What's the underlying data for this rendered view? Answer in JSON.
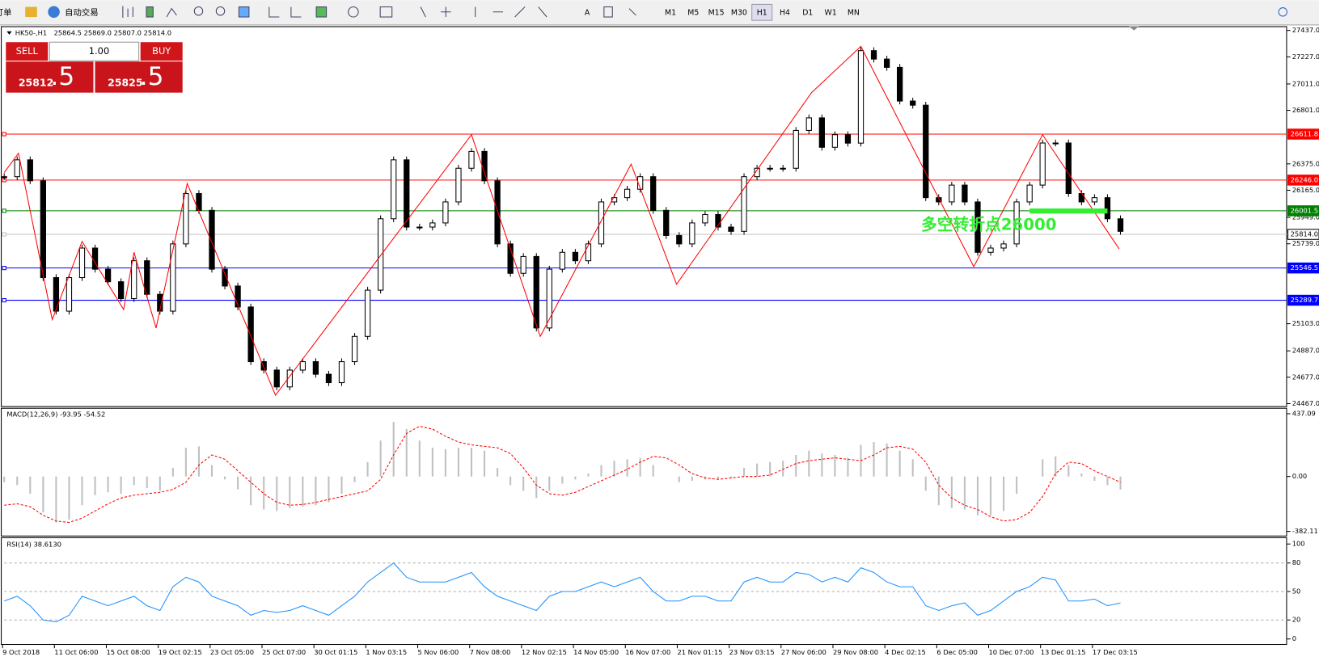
{
  "toolbar": {
    "orders": "订单",
    "auto_trading": "自动交易",
    "timeframes": [
      "M1",
      "M5",
      "M15",
      "M30",
      "H1",
      "H4",
      "D1",
      "W1",
      "MN"
    ],
    "active_timeframe": "H1"
  },
  "trade_panel": {
    "sell": "SELL",
    "buy": "BUY",
    "lot": "1.00",
    "bid_main": "25812",
    "bid_frac": ".5",
    "ask_main": "25825",
    "ask_frac": ".5"
  },
  "chart_data": [
    {
      "type": "candlestick",
      "title": "HK50-,H1",
      "header_values": "25864.5 25869.0 25807.0 25814.0",
      "values": [
        26273,
        26407,
        26240,
        25470,
        25203,
        25470,
        25705,
        25537,
        25437,
        25303,
        25604,
        25337,
        25203,
        25738,
        26139,
        26005,
        25537,
        25403,
        25236,
        24801,
        24734,
        24600,
        24734,
        24801,
        24701,
        24634,
        24801,
        25002,
        25370,
        25938,
        26407,
        25872,
        25872,
        25905,
        26072,
        26340,
        26474,
        26240,
        25738,
        25504,
        25638,
        25069,
        25537,
        25671,
        25604,
        25738,
        26072,
        26106,
        26173,
        26273,
        26005,
        25805,
        25738,
        25905,
        25972,
        25872,
        25838,
        26273,
        26340,
        26340,
        26340,
        26641,
        26741,
        26507,
        26607,
        26540,
        27276,
        27209,
        27143,
        26875,
        26842,
        26106,
        26072,
        26206,
        26072,
        25671,
        25705,
        25738,
        26072,
        26206,
        26541,
        26541,
        26139,
        26072,
        26106,
        25938,
        25838
      ],
      "ylim": [
        24467,
        27437
      ],
      "yticks": [
        {
          "value": 27437,
          "label": "27437.0"
        },
        {
          "value": 27227,
          "label": "27227.0"
        },
        {
          "value": 27011,
          "label": "27011.0"
        },
        {
          "value": 26801,
          "label": "26801.0"
        },
        {
          "value": 26375,
          "label": "26375.0"
        },
        {
          "value": 26165,
          "label": "26165.0"
        },
        {
          "value": 25949,
          "label": "25949.0"
        },
        {
          "value": 25739,
          "label": "25739.0"
        },
        {
          "value": 25103,
          "label": "25103.0"
        },
        {
          "value": 24887,
          "label": "24887.0"
        },
        {
          "value": 24677,
          "label": "24677.0"
        },
        {
          "value": 24467,
          "label": "24467.0"
        }
      ],
      "levels": [
        {
          "value": 26611.8,
          "label": "26611.8",
          "color": "#ff0000"
        },
        {
          "value": 26246,
          "label": "26246.0",
          "color": "#ff0000"
        },
        {
          "value": 26001.5,
          "label": "26001.5",
          "color": "#008000"
        },
        {
          "value": 25814,
          "label": "25814.0",
          "color": "#c0c0c0"
        },
        {
          "value": 25546.5,
          "label": "25546.5",
          "color": "#0000ff"
        },
        {
          "value": 25289.7,
          "label": "25289.7",
          "color": "#0000ff"
        }
      ],
      "zigzag": {
        "color": "#ff0000",
        "x": [
          0,
          1.1,
          3.7,
          6.0,
          9.2,
          10.0,
          11.7,
          14.1,
          20.9,
          36.0,
          41.3,
          48.3,
          51.8,
          62.2,
          66.0,
          74.7,
          80.0,
          85.9
        ],
        "values": [
          26306,
          26460,
          25136,
          25758,
          25216,
          25671,
          25069,
          26219,
          24534,
          26607,
          25002,
          26373,
          25417,
          26942,
          27310,
          25557,
          26607,
          25698
        ]
      },
      "annotation": {
        "text": "多空转折点26000",
        "color": "#33ee33",
        "value": 26000,
        "x": [
          79,
          85
        ]
      },
      "x_labels": [
        "9 Oct 2018",
        "11 Oct 06:00",
        "15 Oct 08:00",
        "19 Oct 02:15",
        "23 Oct 05:00",
        "25 Oct 07:00",
        "30 Oct 01:15",
        "1 Nov 03:15",
        "5 Nov 06:00",
        "7 Nov 08:00",
        "12 Nov 02:15",
        "14 Nov 05:00",
        "16 Nov 07:00",
        "21 Nov 01:15",
        "23 Nov 03:15",
        "27 Nov 06:00",
        "29 Nov 08:00",
        "4 Dec 02:15",
        "6 Dec 05:00",
        "10 Dec 07:00",
        "13 Dec 01:15",
        "17 Dec 03:15"
      ]
    },
    {
      "type": "macd",
      "title": "MACD(12,26,9) -93.95 -54.52",
      "color": "#c0c0c0",
      "signal_color": "#ff0000",
      "values": [
        -40,
        -60,
        -120,
        -250,
        -320,
        -300,
        -200,
        -130,
        -110,
        -120,
        -60,
        -80,
        -100,
        60,
        200,
        210,
        80,
        -20,
        -90,
        -200,
        -230,
        -240,
        -220,
        -210,
        -200,
        -180,
        -120,
        -40,
        100,
        250,
        380,
        330,
        250,
        200,
        190,
        200,
        200,
        180,
        60,
        -60,
        -100,
        -150,
        -100,
        -50,
        -20,
        20,
        80,
        110,
        120,
        130,
        80,
        0,
        -40,
        -30,
        -20,
        -20,
        -10,
        60,
        90,
        100,
        110,
        150,
        180,
        160,
        150,
        130,
        220,
        240,
        230,
        180,
        120,
        -100,
        -200,
        -220,
        -230,
        -270,
        -270,
        -240,
        -120,
        0,
        120,
        140,
        80,
        20,
        -30,
        -60,
        -90
      ],
      "signal_values": [
        -200,
        -190,
        -210,
        -270,
        -310,
        -320,
        -290,
        -240,
        -190,
        -150,
        -130,
        -120,
        -110,
        -90,
        -40,
        80,
        150,
        120,
        40,
        -40,
        -120,
        -180,
        -200,
        -195,
        -180,
        -160,
        -140,
        -120,
        -100,
        -20,
        150,
        300,
        350,
        330,
        280,
        240,
        220,
        210,
        200,
        160,
        60,
        -60,
        -120,
        -130,
        -110,
        -70,
        -30,
        10,
        50,
        100,
        140,
        130,
        80,
        20,
        -10,
        -20,
        -10,
        0,
        0,
        10,
        50,
        90,
        110,
        120,
        130,
        120,
        110,
        150,
        200,
        210,
        190,
        100,
        -60,
        -150,
        -200,
        -230,
        -280,
        -310,
        -300,
        -250,
        -140,
        20,
        100,
        90,
        40,
        0,
        -40
      ],
      "ylim": [
        -382.11,
        437.09
      ],
      "yticks": [
        437.09,
        {
          "value": 0,
          "label": "0.00"
        },
        -382.11
      ]
    },
    {
      "type": "line",
      "title": "RSI(14) 38.6130",
      "color": "#1e90ff",
      "values": [
        40,
        45,
        35,
        20,
        18,
        25,
        45,
        40,
        35,
        40,
        45,
        35,
        30,
        55,
        65,
        60,
        45,
        40,
        35,
        25,
        30,
        28,
        30,
        35,
        30,
        25,
        35,
        45,
        60,
        70,
        80,
        65,
        60,
        60,
        60,
        65,
        70,
        55,
        45,
        40,
        35,
        30,
        45,
        50,
        50,
        55,
        60,
        55,
        60,
        65,
        50,
        40,
        40,
        45,
        45,
        40,
        40,
        60,
        65,
        60,
        60,
        70,
        68,
        60,
        65,
        60,
        75,
        70,
        60,
        55,
        55,
        35,
        30,
        35,
        38,
        25,
        30,
        40,
        50,
        55,
        65,
        62,
        40,
        40,
        42,
        35,
        38
      ],
      "ylim": [
        0,
        100
      ],
      "yticks": [
        100,
        80,
        50,
        20,
        0
      ],
      "levels": [
        80,
        50,
        20
      ]
    }
  ]
}
